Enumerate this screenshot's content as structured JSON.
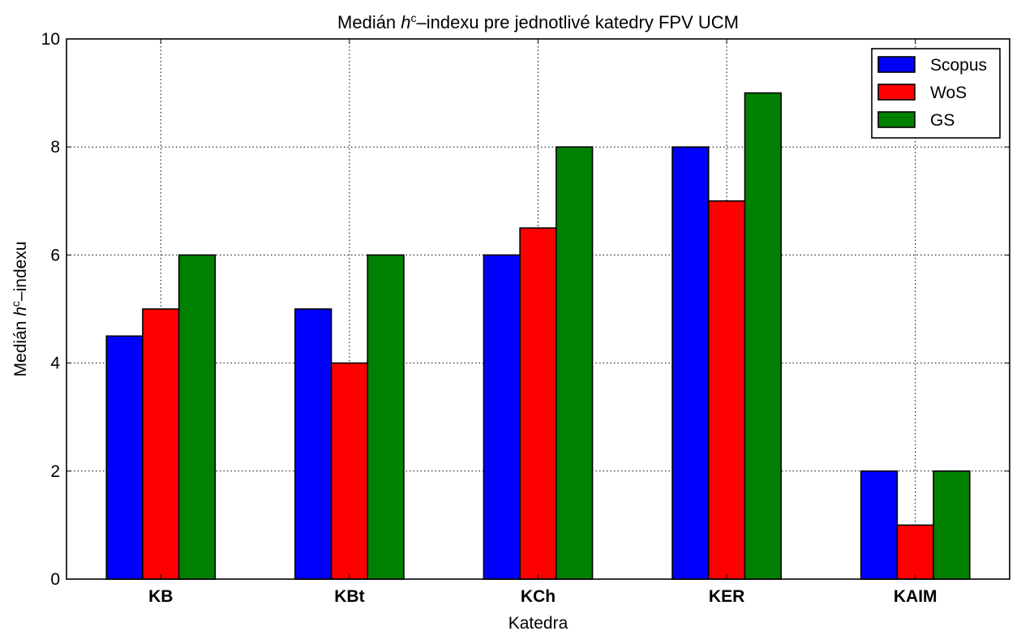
{
  "chart_data": {
    "type": "bar",
    "title_parts": [
      "Medián ",
      "h",
      "c",
      "–indexu pre jednotlivé katedry FPV UCM"
    ],
    "xlabel": "Katedra",
    "ylabel_parts": [
      "Medián ",
      "h",
      "c",
      "–indexu"
    ],
    "categories": [
      "KB",
      "KBt",
      "KCh",
      "KER",
      "KAIM"
    ],
    "series": [
      {
        "name": "Scopus",
        "color": "#0000ff",
        "values": [
          4.5,
          5,
          6,
          8,
          2
        ]
      },
      {
        "name": "WoS",
        "color": "#ff0000",
        "values": [
          5,
          4,
          6.5,
          7,
          1
        ]
      },
      {
        "name": "GS",
        "color": "#008000",
        "values": [
          6,
          6,
          8,
          9,
          2
        ]
      }
    ],
    "ylim": [
      0,
      10
    ],
    "yticks": [
      0,
      2,
      4,
      6,
      8,
      10
    ],
    "grid": true,
    "legend_position": "top-right"
  }
}
